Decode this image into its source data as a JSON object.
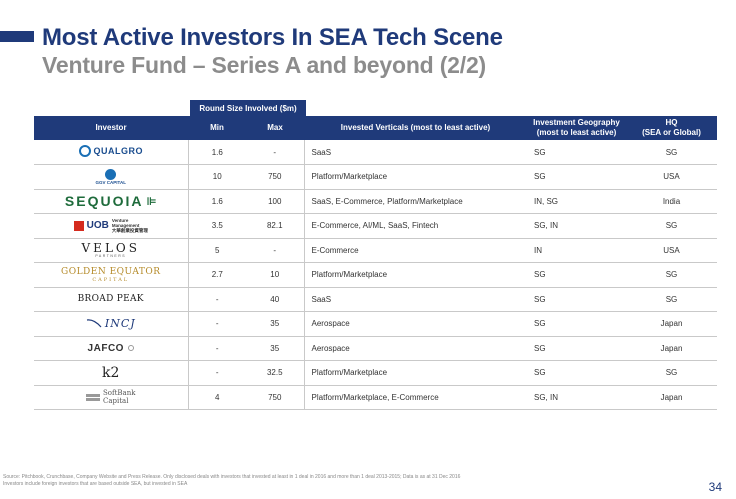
{
  "title": {
    "line1": "Most Active Investors In SEA Tech Scene",
    "line2": "Venture Fund – Series A and beyond (2/2)"
  },
  "table": {
    "round_size_header": "Round Size Involved ($m)",
    "headers": {
      "investor": "Investor",
      "min": "Min",
      "max": "Max",
      "verticals": "Invested Verticals (most to least active)",
      "geo_line1": "Investment Geography",
      "geo_line2": "(most to least active)",
      "hq_line1": "HQ",
      "hq_line2": "(SEA or Global)"
    },
    "logos": {
      "qualgro": "QUALGRO",
      "ggv": "GGV CAPITAL",
      "sequoia": "SEQUOIA",
      "sequoia_mark": "⊫",
      "uob": "UOB",
      "uob_sub1": "Venture",
      "uob_sub2": "Management",
      "uob_cn": "大華創業投資管理",
      "velos": "VELOS",
      "velos_sub": "PARTNERS",
      "golden": "GOLDEN EQUATOR",
      "golden_sub": "CAPITAL",
      "broadpeak": "BROAD PEAK",
      "incj": "INCJ",
      "jafco": "JAFCO",
      "k2": "k2",
      "softbank1": "SoftBank",
      "softbank2": "Capital"
    },
    "rows": [
      {
        "min": "1.6",
        "max": "-",
        "verticals": "SaaS",
        "geo": "SG",
        "hq": "SG"
      },
      {
        "min": "10",
        "max": "750",
        "verticals": "Platform/Marketplace",
        "geo": "SG",
        "hq": "USA"
      },
      {
        "min": "1.6",
        "max": "100",
        "verticals": "SaaS, E-Commerce, Platform/Marketplace",
        "geo": "IN, SG",
        "hq": "India"
      },
      {
        "min": "3.5",
        "max": "82.1",
        "verticals": "E-Commerce, AI/ML, SaaS, Fintech",
        "geo": "SG, IN",
        "hq": "SG"
      },
      {
        "min": "5",
        "max": "-",
        "verticals": "E-Commerce",
        "geo": "IN",
        "hq": "USA"
      },
      {
        "min": "2.7",
        "max": "10",
        "verticals": "Platform/Marketplace",
        "geo": "SG",
        "hq": "SG"
      },
      {
        "min": "-",
        "max": "40",
        "verticals": "SaaS",
        "geo": "SG",
        "hq": "SG"
      },
      {
        "min": "-",
        "max": "35",
        "verticals": "Aerospace",
        "geo": "SG",
        "hq": "Japan"
      },
      {
        "min": "-",
        "max": "35",
        "verticals": "Aerospace",
        "geo": "SG",
        "hq": "Japan"
      },
      {
        "min": "-",
        "max": "32.5",
        "verticals": "Platform/Marketplace",
        "geo": "SG",
        "hq": "SG"
      },
      {
        "min": "4",
        "max": "750",
        "verticals": "Platform/Marketplace, E-Commerce",
        "geo": "SG, IN",
        "hq": "Japan"
      }
    ]
  },
  "footer": {
    "source_line1": "Source: Pitchbook, Crunchbase, Company Website and Press Release. Only disclosed deals with investors that invested at least in 1 deal in 2016 and more than 1 deal 2013-2015; Data is as at 31 Dec 2016",
    "source_line2": "Investors include foreign investors that are based outside SEA, but invested in SEA",
    "page_number": "34"
  },
  "colors": {
    "brand_navy": "#1f3a7a",
    "subtitle_grey": "#8c8c8c"
  }
}
